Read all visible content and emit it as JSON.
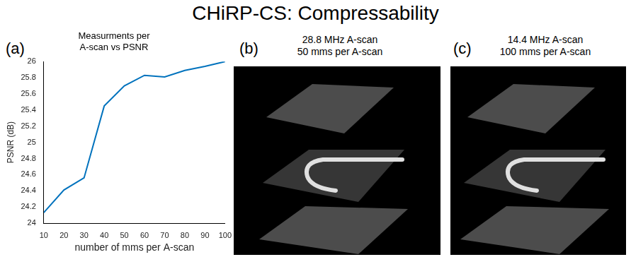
{
  "title": "CHiRP-CS: Compressability",
  "chart_data": {
    "type": "line",
    "letter": "(a)",
    "title": [
      "Measurments per",
      "A-scan vs PSNR"
    ],
    "x_label": "number of mms per A-scan",
    "y_label": "PSNR (dB)",
    "x": [
      10,
      20,
      30,
      40,
      50,
      60,
      70,
      80,
      90,
      100
    ],
    "values": [
      24.13,
      24.41,
      24.56,
      25.45,
      25.7,
      25.83,
      25.81,
      25.89,
      25.94,
      26.0
    ],
    "color": "#0072bd",
    "xlim": [
      10,
      100
    ],
    "xticks": [
      10,
      20,
      30,
      40,
      50,
      60,
      70,
      80,
      90,
      100
    ],
    "ylim": [
      24,
      26
    ],
    "yticks": [
      24,
      24.2,
      24.4,
      24.6,
      24.8,
      25,
      25.2,
      25.4,
      25.6,
      25.8,
      26
    ],
    "grid": false
  },
  "panels": [
    {
      "letter": "(b)",
      "title": [
        "28.8 MHz A-scan",
        "50 mms per A-scan"
      ]
    },
    {
      "letter": "(c)",
      "title": [
        "14.4 MHz A-scan",
        "100 mms per A-scan"
      ]
    }
  ]
}
